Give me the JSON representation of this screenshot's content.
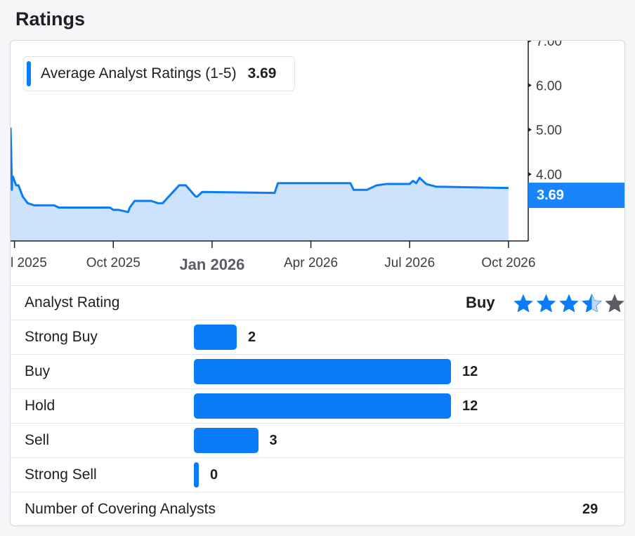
{
  "section": {
    "title": "Ratings"
  },
  "legend": {
    "label": "Average Analyst Ratings (1-5)",
    "value": "3.69"
  },
  "last_value_badge": "3.69",
  "colors": {
    "accent": "#0a7cf7",
    "fill": "#cde3fd",
    "star_inactive": "#5a5d63"
  },
  "chart_data": {
    "type": "area",
    "title": "",
    "xlabel": "",
    "ylabel": "",
    "x_ticks": [
      "l 2025",
      "Oct 2025",
      "Jan 2026",
      "Apr 2026",
      "Jul 2026",
      "Oct 2026"
    ],
    "x_ticks_month_index": [
      0,
      3,
      6,
      9,
      12,
      15
    ],
    "y_ticks": [
      "7.00",
      "6.00",
      "5.00",
      "4.00"
    ],
    "y_tick_values": [
      7,
      6,
      5,
      4
    ],
    "ylim": [
      2.5,
      7.0
    ],
    "xlim_month_index": [
      -0.12,
      15.6
    ],
    "grid": false,
    "series": [
      {
        "x": [
          -0.12,
          -0.1,
          -0.08,
          -0.07,
          -0.05,
          0.05,
          0.12,
          0.25,
          0.4,
          0.6,
          1.2,
          1.35,
          2.9,
          3.0,
          3.15,
          3.45,
          3.5,
          3.65,
          4.15,
          4.35,
          4.5,
          5.0,
          5.2,
          5.5,
          5.55,
          5.7,
          7.9,
          8.0,
          10.2,
          10.3,
          10.7,
          11.0,
          11.3,
          12.0,
          12.1,
          12.2,
          12.3,
          12.5,
          12.8,
          15.0
        ],
        "y": [
          5.05,
          4.5,
          3.65,
          3.9,
          3.95,
          3.75,
          3.75,
          3.5,
          3.35,
          3.3,
          3.3,
          3.25,
          3.25,
          3.2,
          3.2,
          3.15,
          3.25,
          3.4,
          3.4,
          3.35,
          3.35,
          3.75,
          3.75,
          3.5,
          3.5,
          3.6,
          3.58,
          3.8,
          3.8,
          3.65,
          3.65,
          3.75,
          3.78,
          3.78,
          3.85,
          3.8,
          3.92,
          3.78,
          3.72,
          3.69
        ]
      }
    ]
  },
  "analyst_rating": {
    "label": "Analyst Rating",
    "value": "Buy",
    "stars": 3.5,
    "stars_max": 5
  },
  "distribution": [
    {
      "label": "Strong Buy",
      "count": 2
    },
    {
      "label": "Buy",
      "count": 12
    },
    {
      "label": "Hold",
      "count": 12
    },
    {
      "label": "Sell",
      "count": 3
    },
    {
      "label": "Strong Sell",
      "count": 0
    }
  ],
  "covering": {
    "label": "Number of Covering Analysts",
    "count": "29"
  }
}
